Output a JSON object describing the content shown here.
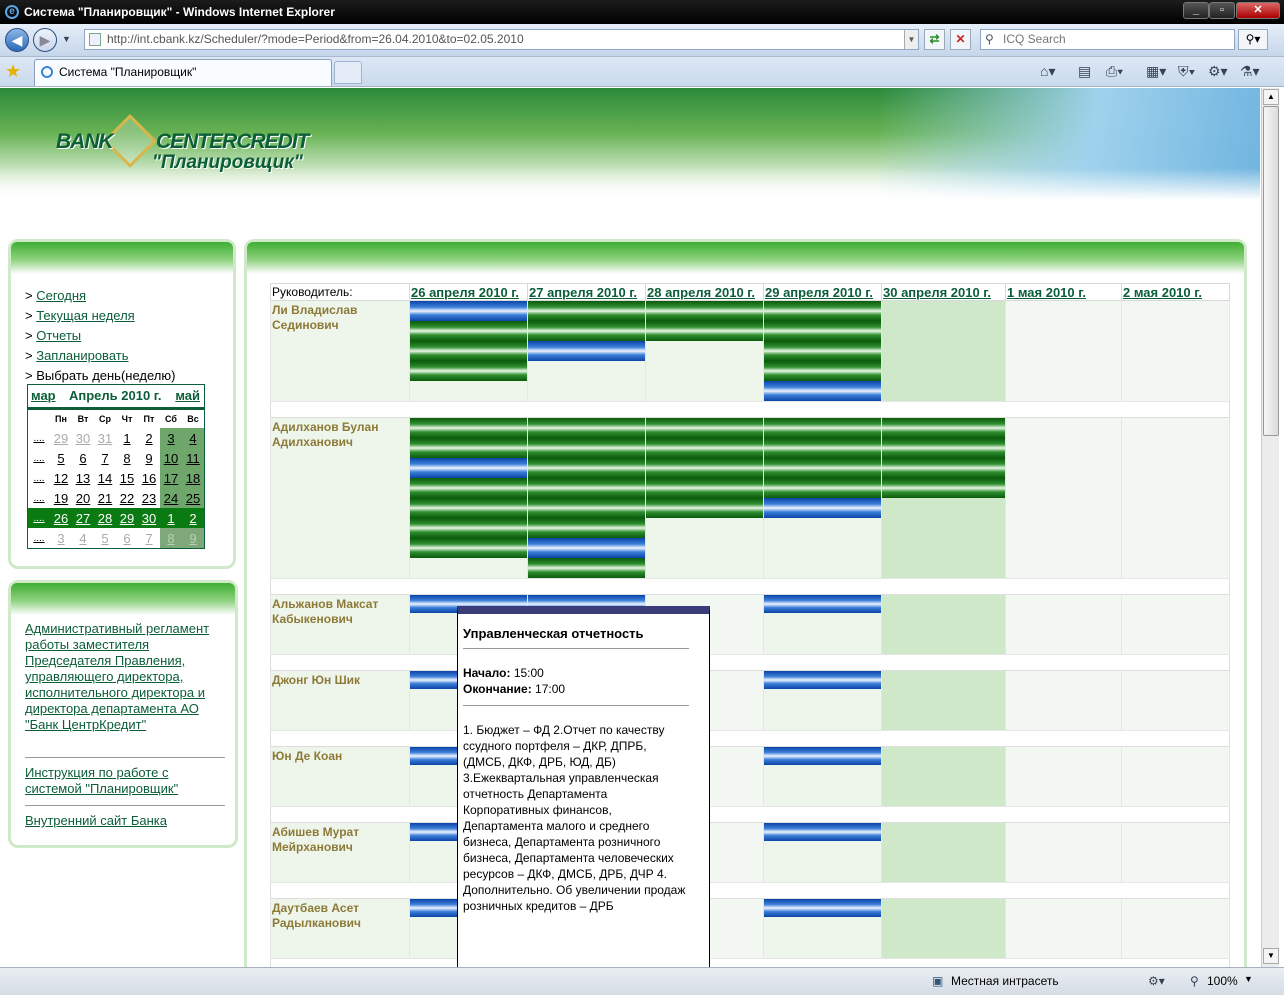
{
  "window": {
    "title": "Система \"Планировщик\" - Windows Internet Explorer"
  },
  "browser": {
    "url": "http://int.cbank.kz/Scheduler/?mode=Period&from=26.04.2010&to=02.05.2010",
    "search_placeholder": "ICQ Search",
    "tab_title": "Система \"Планировщик\"",
    "status_zone": "Местная интрасеть",
    "zoom": "100%"
  },
  "banner": {
    "bank": "BANK",
    "centercredit": "CENTERCREDIT",
    "subtitle": "\"Планировщик\""
  },
  "nav": {
    "items": [
      {
        "label": "Сегодня",
        "link": true
      },
      {
        "label": "Текущая неделя",
        "link": true
      },
      {
        "label": "Отчеты",
        "link": true
      },
      {
        "label": "Запланировать",
        "link": true
      },
      {
        "label": "Выбрать день(неделю)",
        "link": false
      }
    ]
  },
  "calendar": {
    "prev": "мар",
    "title": "Апрель 2010 г.",
    "next": "май",
    "weekdays": [
      "Пн",
      "Вт",
      "Ср",
      "Чт",
      "Пт",
      "Сб",
      "Вс"
    ],
    "week_link": "....",
    "weeks": [
      [
        "29",
        "30",
        "31",
        "1",
        "2",
        "3",
        "4"
      ],
      [
        "5",
        "6",
        "7",
        "8",
        "9",
        "10",
        "11"
      ],
      [
        "12",
        "13",
        "14",
        "15",
        "16",
        "17",
        "18"
      ],
      [
        "19",
        "20",
        "21",
        "22",
        "23",
        "24",
        "25"
      ],
      [
        "26",
        "27",
        "28",
        "29",
        "30",
        "1",
        "2"
      ],
      [
        "3",
        "4",
        "5",
        "6",
        "7",
        "8",
        "9"
      ]
    ]
  },
  "links": [
    "Административный регламент работы заместителя Председателя Правления, управляющего директора, исполнительного директора и директора департамента АО \"Банк ЦентрКредит\"",
    "Инструкция по работе с системой \"Планировщик\"",
    "Внутренний сайт Банка"
  ],
  "schedule": {
    "lead_header": "Руководитель:",
    "days": [
      "26 апреля 2010 г.",
      "27 апреля 2010 г.",
      "28 апреля 2010 г.",
      "29 апреля 2010 г.",
      "30 апреля 2010 г.",
      "1 мая 2010 г.",
      "2 мая 2010 г."
    ],
    "rows": [
      {
        "name": "Ли Владислав Сединович",
        "cells": [
          [
            "b",
            "g",
            "g",
            "g"
          ],
          [
            "g",
            "g",
            "b"
          ],
          [
            "g",
            "g"
          ],
          [
            "g",
            "g",
            "g",
            "g",
            "b"
          ],
          [],
          [],
          []
        ]
      },
      {
        "name": "Адилханов Булан Адилханович",
        "cells": [
          [
            "g",
            "g",
            "b",
            "g",
            "g",
            "g",
            "g"
          ],
          [
            "g",
            "g",
            "g",
            "g",
            "g",
            "g",
            "b",
            "g"
          ],
          [
            "g",
            "g",
            "g",
            "g",
            "g"
          ],
          [
            "g",
            "g",
            "g",
            "g",
            "b"
          ],
          [
            "g",
            "g",
            "g",
            "g"
          ],
          [],
          []
        ]
      },
      {
        "name": "Альжанов Максат Кабыкенович",
        "cells": [
          [
            "b"
          ],
          [
            "b"
          ],
          [],
          [
            "b"
          ],
          [],
          [],
          []
        ]
      },
      {
        "name": "Джонг Юн Шик",
        "cells": [
          [
            "b"
          ],
          [],
          [],
          [
            "b"
          ],
          [],
          [],
          []
        ]
      },
      {
        "name": "Юн Де Коан",
        "cells": [
          [
            "b"
          ],
          [],
          [],
          [
            "b"
          ],
          [],
          [],
          []
        ]
      },
      {
        "name": "Абишев Мурат Мейрханович",
        "cells": [
          [
            "b"
          ],
          [],
          [],
          [
            "b"
          ],
          [],
          [],
          []
        ]
      },
      {
        "name": "Даутбаев Асет Радылканович",
        "cells": [
          [
            "b"
          ],
          [],
          [],
          [
            "b"
          ],
          [],
          [],
          []
        ]
      }
    ]
  },
  "tooltip": {
    "title": "Управленческая отчетность",
    "start_label": "Начало:",
    "start": "15:00",
    "end_label": "Окончание:",
    "end": "17:00",
    "description": "1. Бюджет – ФД 2.Отчет по качеству ссудного портфеля – ДКР, ДПРБ, (ДМСБ, ДКФ, ДРБ, ЮД, ДБ) 3.Ежеквартальная управленческая отчетность Департамента Корпоративных финансов, Департамента малого и среднего бизнеса, Департамента розничного бизнеса, Департамента человеческих ресурсов – ДКФ, ДМСБ, ДРБ, ДЧР 4. Дополнительно. Об увеличении продаж розничных кредитов – ДРБ"
  }
}
